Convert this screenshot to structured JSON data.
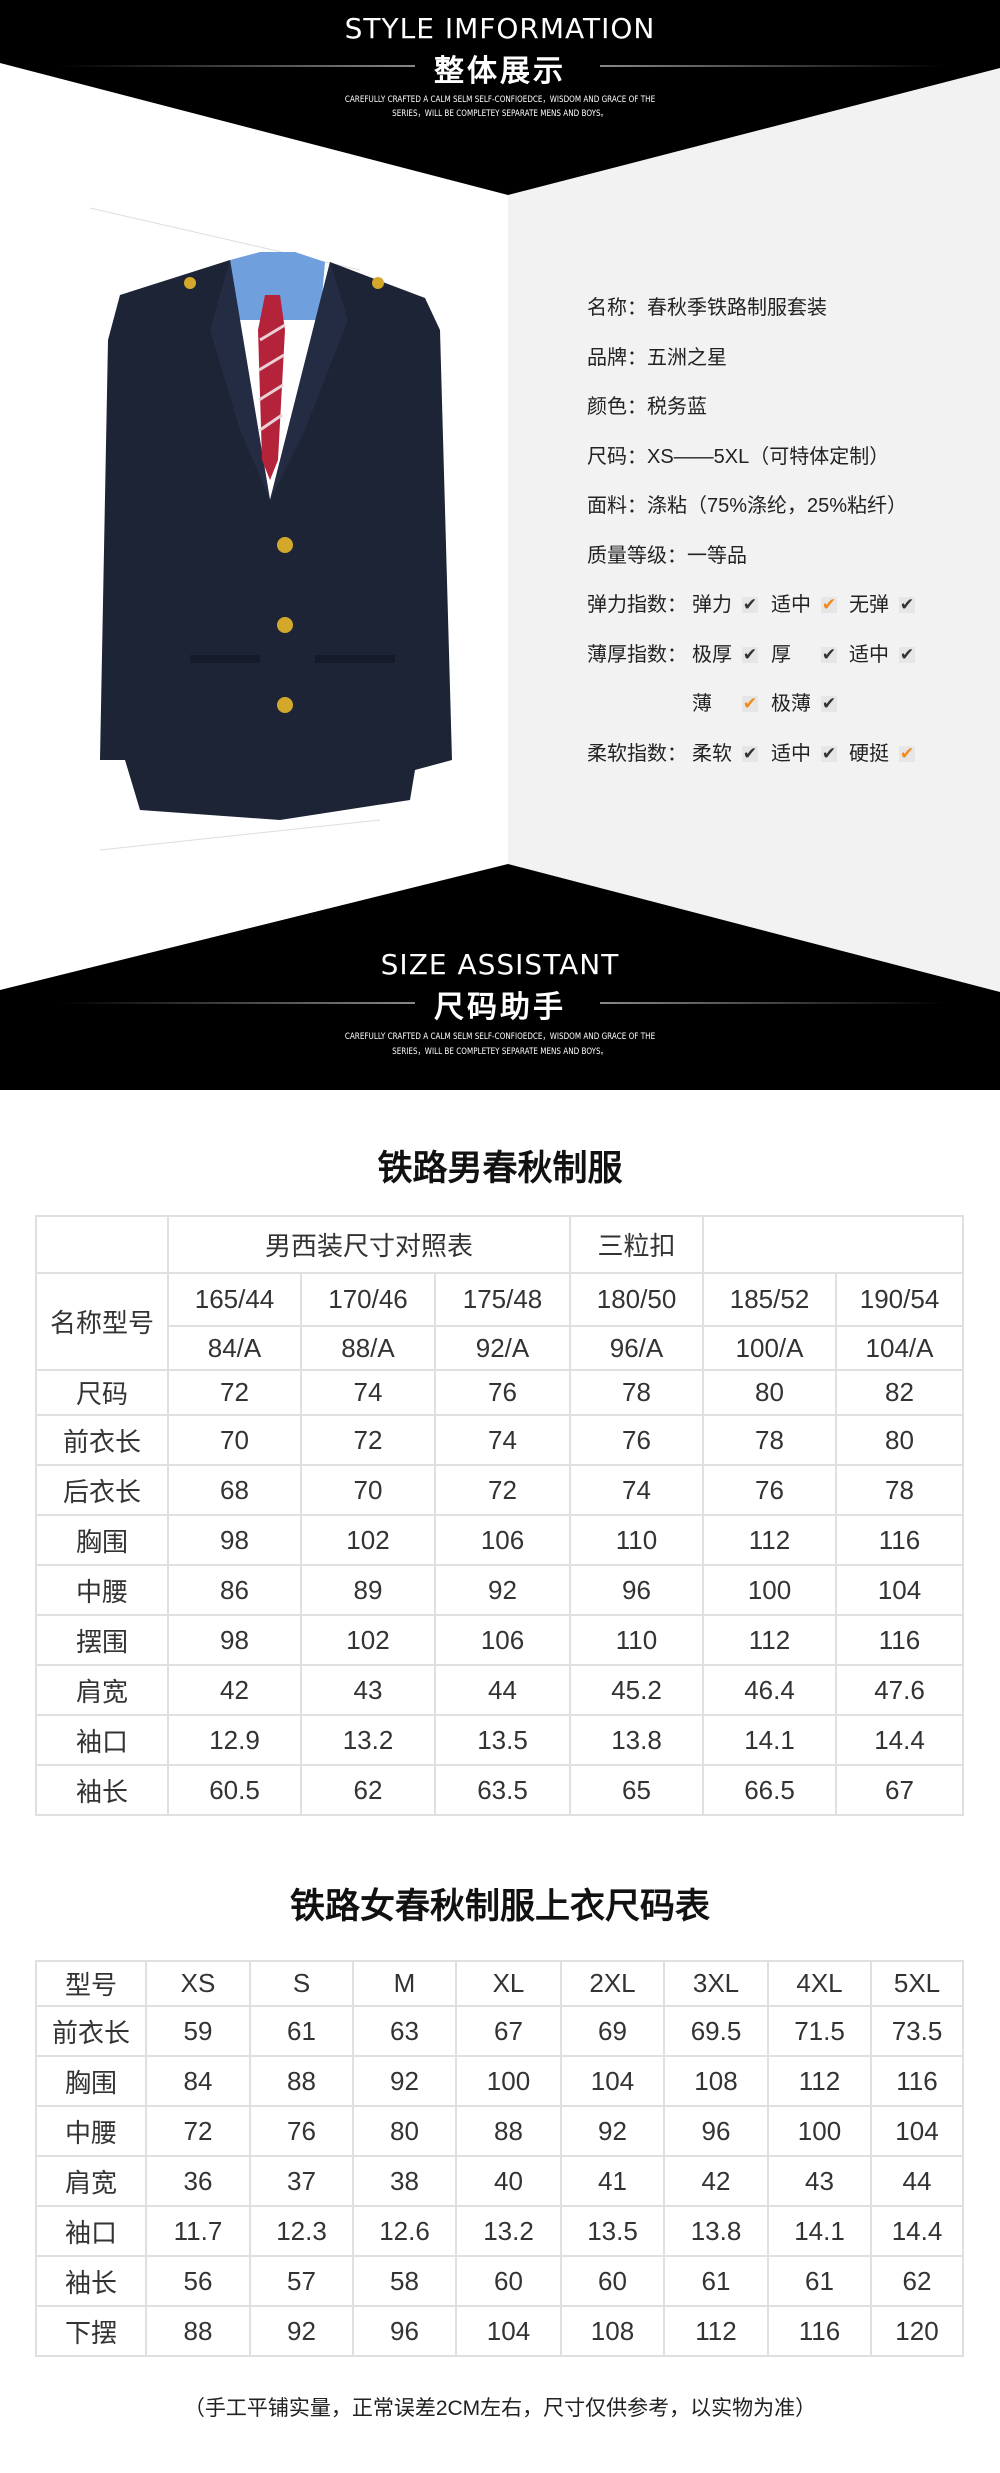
{
  "style_banner": {
    "title_en": "STYLE IMFORMATION",
    "title_cn": "整体展示",
    "subtitle_line1": "CAREFULLY CRAFTED A CALM SELM SELF-CONFIOEDCE，WISDOM AND GRACE OF THE",
    "subtitle_line2": "SERIES，WILL BE COMPLETEY SEPARATE MENS AND BOYS。"
  },
  "product_image": {
    "icon": "suit-jacket-photo",
    "jacket_color": "#1c2436",
    "shirt_color": "#6f9fdc",
    "tie_color": "#b5233a",
    "button_color": "#d4a82a"
  },
  "specs": [
    {
      "label": "名称",
      "value": "春秋季铁路制服套装"
    },
    {
      "label": "品牌",
      "value": "五洲之星"
    },
    {
      "label": "颜色",
      "value": "税务蓝"
    },
    {
      "label": "尺码",
      "value": "XS——5XL（可特体定制）"
    },
    {
      "label": "面料",
      "value": "涤粘（75%涤纶，25%粘纤）"
    },
    {
      "label": "质量等级",
      "value": "一等品"
    }
  ],
  "indices": [
    {
      "label": "弹力指数",
      "rows": [
        [
          {
            "text": "弹力",
            "selected": false
          },
          {
            "text": "适中",
            "selected": true
          },
          {
            "text": "无弹",
            "selected": false
          }
        ]
      ]
    },
    {
      "label": "薄厚指数",
      "rows": [
        [
          {
            "text": "极厚",
            "selected": false
          },
          {
            "text": "厚",
            "selected": false
          },
          {
            "text": "适中",
            "selected": false
          }
        ],
        [
          {
            "text": "薄",
            "selected": true
          },
          {
            "text": "极薄",
            "selected": false
          }
        ]
      ]
    },
    {
      "label": "柔软指数",
      "rows": [
        [
          {
            "text": "柔软",
            "selected": false
          },
          {
            "text": "适中",
            "selected": false
          },
          {
            "text": "硬挺",
            "selected": true
          }
        ]
      ]
    }
  ],
  "colors": {
    "check_selected": "#f08a1c",
    "check_default": "#333333",
    "banner": "#000000",
    "panel_gray": "#f2f2f2"
  },
  "size_banner": {
    "title_en": "SIZE ASSISTANT",
    "title_cn": "尺码助手",
    "subtitle_line1": "CAREFULLY CRAFTED A CALM SELM SELF-CONFIOEDCE，WISDOM AND GRACE OF THE",
    "subtitle_line2": "SERIES，WILL BE COMPLETEY SEPARATE MENS AND BOYS。"
  },
  "men_table": {
    "title": "铁路男春秋制服",
    "caption": "男西装尺寸对照表",
    "buttons_note": "三粒扣",
    "model_label": "名称型号",
    "heights": [
      "165/44",
      "170/46",
      "175/48",
      "180/50",
      "185/52",
      "190/54"
    ],
    "chest_types": [
      "84/A",
      "88/A",
      "92/A",
      "96/A",
      "100/A",
      "104/A"
    ],
    "rows": [
      {
        "label": "尺码",
        "values": [
          "72",
          "74",
          "76",
          "78",
          "80",
          "82"
        ]
      },
      {
        "label": "前衣长",
        "values": [
          "70",
          "72",
          "74",
          "76",
          "78",
          "80"
        ]
      },
      {
        "label": "后衣长",
        "values": [
          "68",
          "70",
          "72",
          "74",
          "76",
          "78"
        ]
      },
      {
        "label": "胸围",
        "values": [
          "98",
          "102",
          "106",
          "110",
          "112",
          "116"
        ]
      },
      {
        "label": "中腰",
        "values": [
          "86",
          "89",
          "92",
          "96",
          "100",
          "104"
        ]
      },
      {
        "label": "摆围",
        "values": [
          "98",
          "102",
          "106",
          "110",
          "112",
          "116"
        ]
      },
      {
        "label": "肩宽",
        "values": [
          "42",
          "43",
          "44",
          "45.2",
          "46.4",
          "47.6"
        ]
      },
      {
        "label": "袖口",
        "values": [
          "12.9",
          "13.2",
          "13.5",
          "13.8",
          "14.1",
          "14.4"
        ]
      },
      {
        "label": "袖长",
        "values": [
          "60.5",
          "62",
          "63.5",
          "65",
          "66.5",
          "67"
        ]
      }
    ]
  },
  "women_table": {
    "title": "铁路女春秋制服上衣尺码表",
    "header_label": "型号",
    "sizes": [
      "XS",
      "S",
      "M",
      "XL",
      "2XL",
      "3XL",
      "4XL",
      "5XL"
    ],
    "rows": [
      {
        "label": "前衣长",
        "values": [
          "59",
          "61",
          "63",
          "67",
          "69",
          "69.5",
          "71.5",
          "73.5"
        ]
      },
      {
        "label": "胸围",
        "values": [
          "84",
          "88",
          "92",
          "100",
          "104",
          "108",
          "112",
          "116"
        ]
      },
      {
        "label": "中腰",
        "values": [
          "72",
          "76",
          "80",
          "88",
          "92",
          "96",
          "100",
          "104"
        ]
      },
      {
        "label": "肩宽",
        "values": [
          "36",
          "37",
          "38",
          "40",
          "41",
          "42",
          "43",
          "44"
        ]
      },
      {
        "label": "袖口",
        "values": [
          "11.7",
          "12.3",
          "12.6",
          "13.2",
          "13.5",
          "13.8",
          "14.1",
          "14.4"
        ]
      },
      {
        "label": "袖长",
        "values": [
          "56",
          "57",
          "58",
          "60",
          "60",
          "61",
          "61",
          "62"
        ]
      },
      {
        "label": "下摆",
        "values": [
          "88",
          "92",
          "96",
          "104",
          "108",
          "112",
          "116",
          "120"
        ]
      }
    ]
  },
  "footnote": "（手工平铺实量，正常误差2CM左右，尺寸仅供参考，以实物为准）"
}
